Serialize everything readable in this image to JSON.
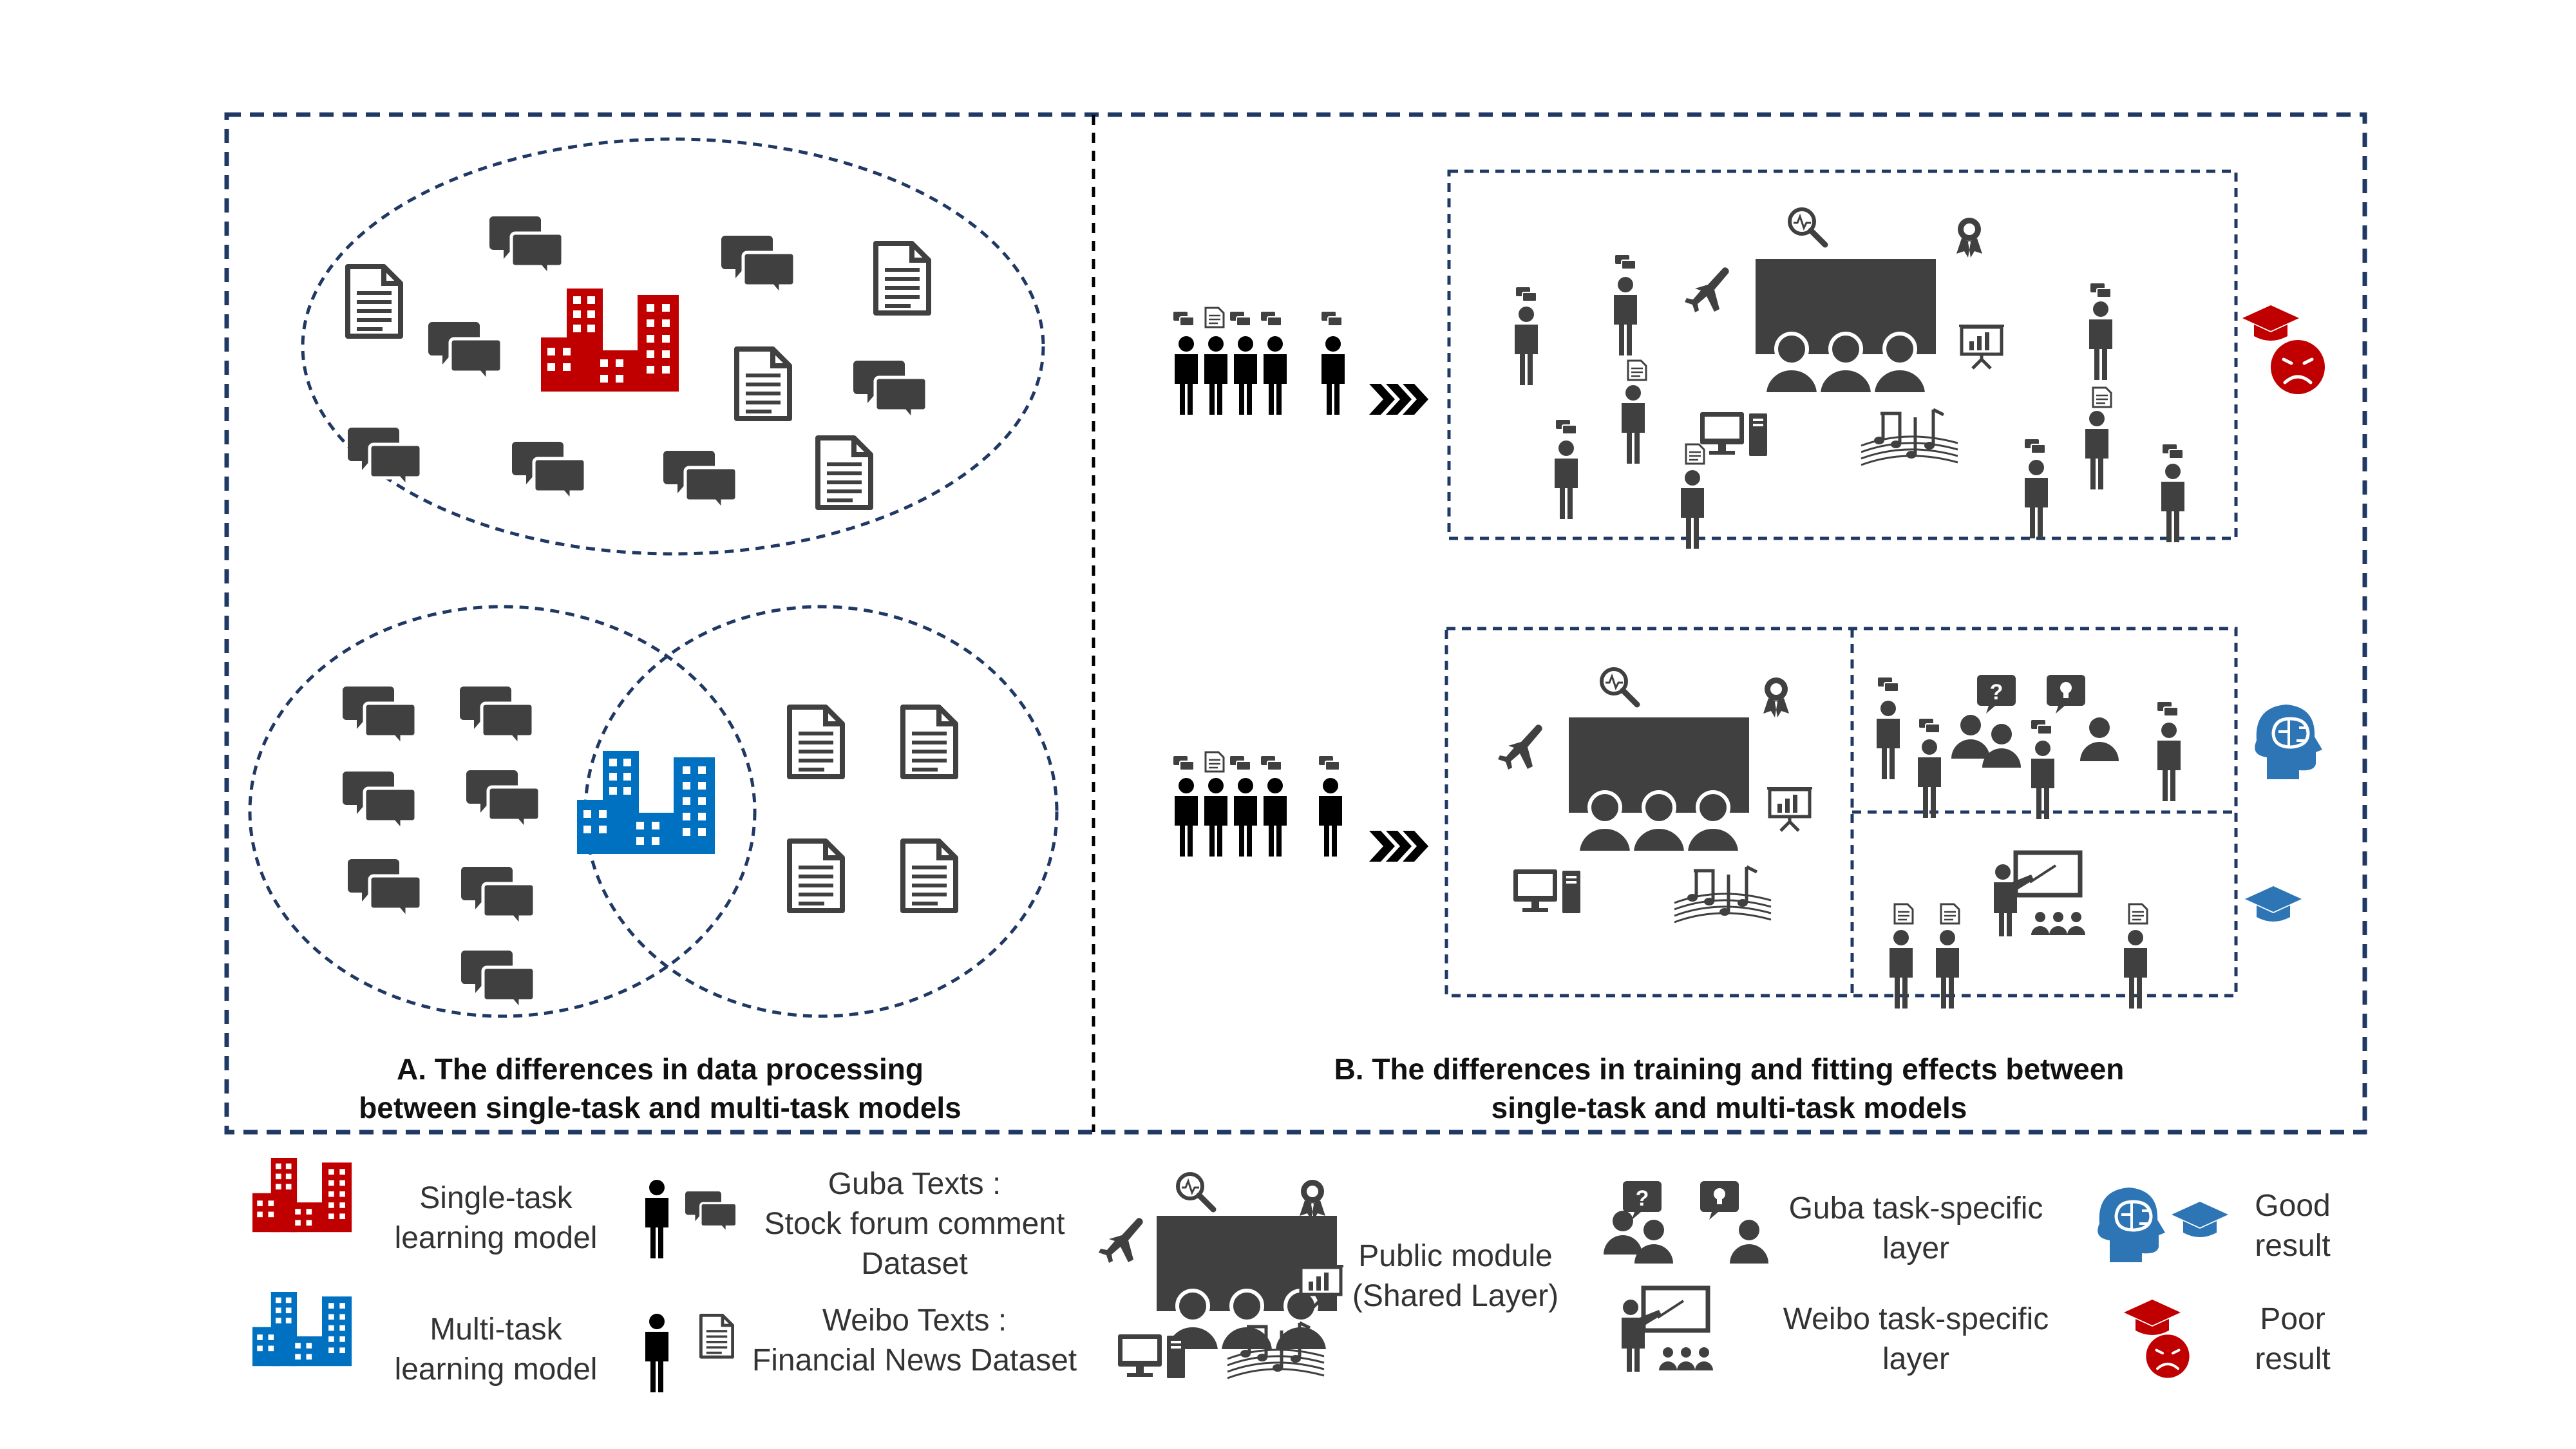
{
  "caption_a": {
    "line1": "A. The differences in data processing",
    "line2": "between single-task and multi-task models"
  },
  "caption_b": {
    "line1": "B. The differences in training and fitting effects between",
    "line2": "single-task and multi-task models"
  },
  "legend": {
    "single_task": [
      "Single-task",
      "learning model"
    ],
    "multi_task": [
      "Multi-task",
      "learning model"
    ],
    "guba": [
      "Guba Texts :",
      "Stock forum comment",
      "Dataset"
    ],
    "weibo": [
      "Weibo Texts :",
      "Financial News Dataset"
    ],
    "public": [
      "Public module",
      "(Shared Layer)"
    ],
    "guba_layer": [
      "Guba task-specific",
      "layer"
    ],
    "weibo_layer": [
      "Weibo task-specific",
      "layer"
    ],
    "good": [
      "Good",
      "result"
    ],
    "poor": [
      "Poor",
      "result"
    ]
  },
  "colors": {
    "frame": "#1f3864",
    "icon_dark": "#404040",
    "single_task_red": "#c00000",
    "multi_task_blue": "#0070c0"
  },
  "icons": [
    "chat-bubbles-icon",
    "document-icon",
    "building-icon",
    "person-icon",
    "classroom-icon",
    "magnifier-icon",
    "award-icon",
    "airplane-icon",
    "presentation-icon",
    "computer-icon",
    "music-notes-icon",
    "graduation-cap-icon",
    "sad-face-icon",
    "brain-head-icon",
    "teacher-icon",
    "question-bubble-icon",
    "idea-bubble-icon",
    "chevron-arrows-icon"
  ]
}
